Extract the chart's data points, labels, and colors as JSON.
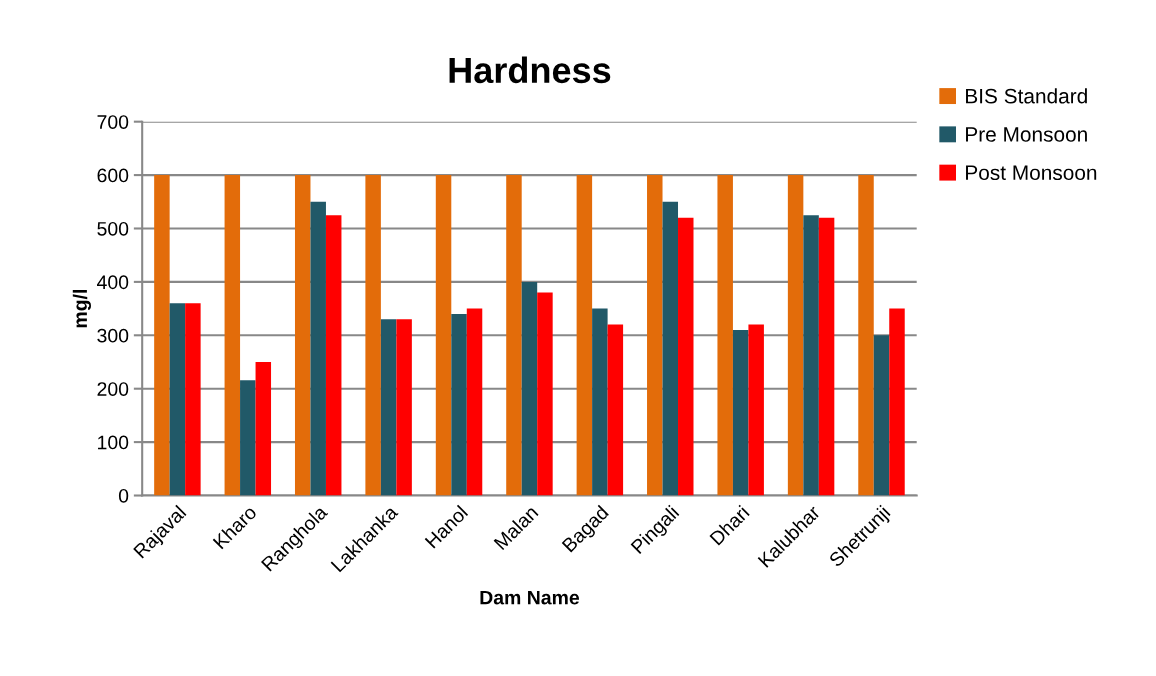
{
  "chart_data": {
    "type": "bar",
    "title": "Hardness",
    "xlabel": "Dam Name",
    "ylabel": "mg/l",
    "categories": [
      "Rajaval",
      "Kharo",
      "Ranghola",
      "Lakhanka",
      "Hanol",
      "Malan",
      "Bagad",
      "Pingali",
      "Dhari",
      "Kalubhar",
      "Shetrunji"
    ],
    "series": [
      {
        "name": "BIS Standard",
        "color": "#e36c0a",
        "values": [
          600,
          600,
          600,
          600,
          600,
          600,
          600,
          600,
          600,
          600,
          600
        ]
      },
      {
        "name": "Pre Monsoon",
        "color": "#215968",
        "values": [
          360,
          216,
          550,
          330,
          340,
          400,
          350,
          550,
          310,
          525,
          300
        ]
      },
      {
        "name": "Post Monsoon",
        "color": "#ff0000",
        "values": [
          360,
          250,
          525,
          330,
          350,
          380,
          320,
          520,
          320,
          520,
          350
        ]
      }
    ],
    "ylim": [
      0,
      700
    ],
    "yticks": [
      0,
      100,
      200,
      300,
      400,
      500,
      600,
      700
    ],
    "grid": "y",
    "legend": "right"
  }
}
